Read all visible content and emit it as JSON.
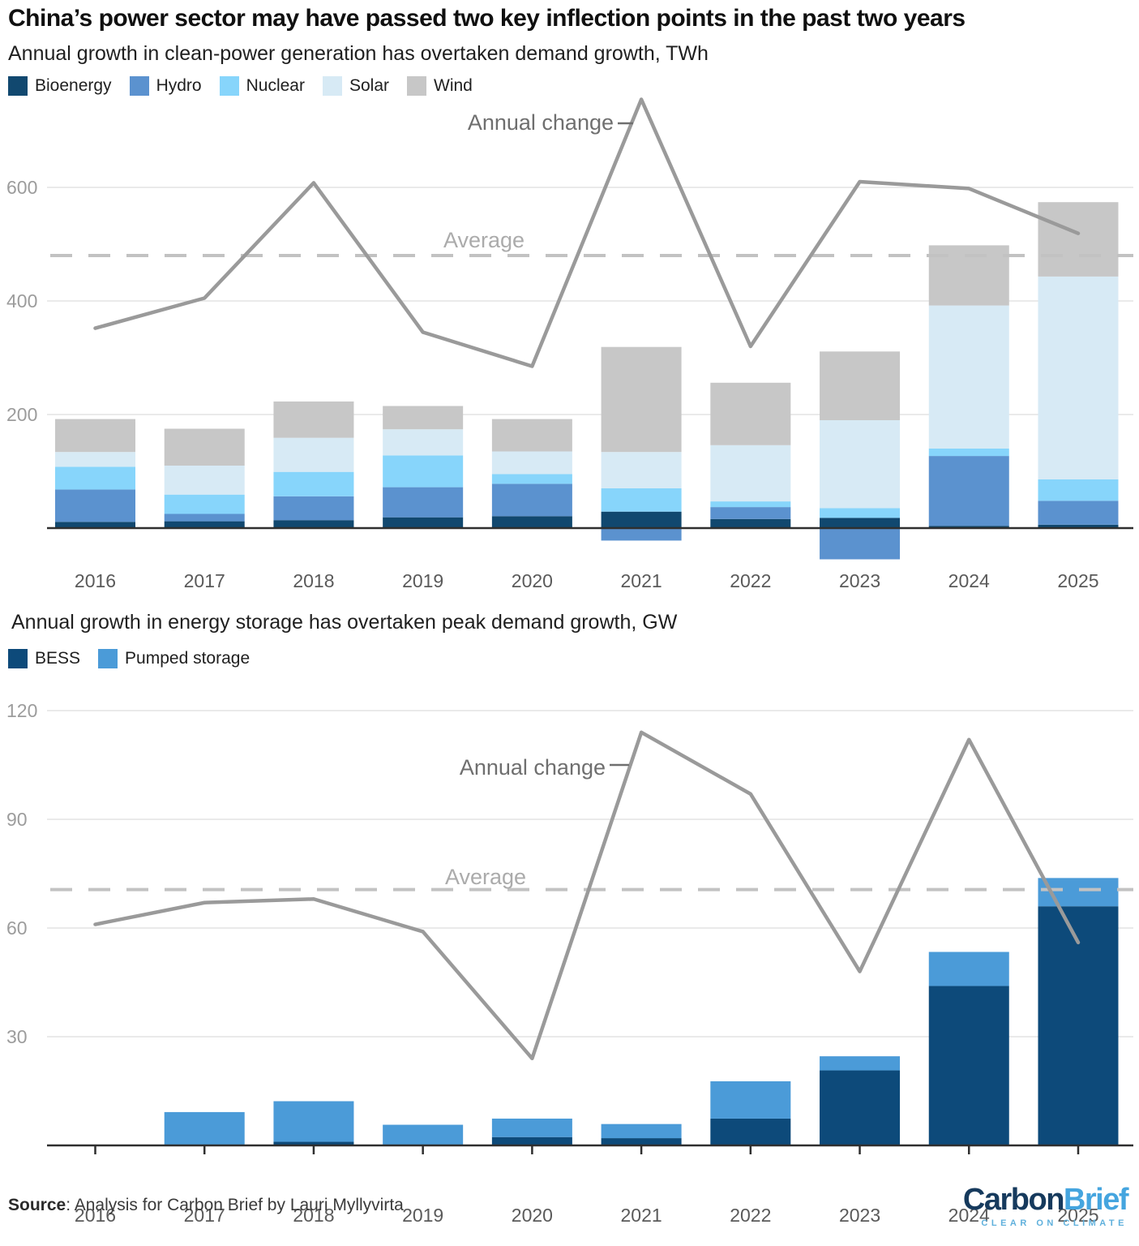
{
  "page": {
    "title": "China’s power sector may have passed two key inflection points in the past two years",
    "subtitle1": "Annual growth in clean-power generation has overtaken demand growth, TWh",
    "chart2_title": "Annual growth in energy storage has overtaken peak demand growth, GW",
    "source_label": "Source",
    "source_text": ": Analysis for Carbon Brief by Lauri Myllyvirta",
    "logo": {
      "part1": "Carbon",
      "part2": "Brief",
      "tagline": "CLEAR ON CLIMATE"
    }
  },
  "colors": {
    "line": "#9a9a9a",
    "dashed_average": "#c2c2c2",
    "grid": "#e4e4e4",
    "axis": "#2f2f2f",
    "tick_label": "#9c9c9c",
    "year_label": "#5a5a5a",
    "annotation_label": "#6f6f6f",
    "average_label": "#ababab",
    "logo_dark": "#163a5d",
    "logo_light": "#45a5df",
    "logo_tagline": "#5fb0dc"
  },
  "chart_data": [
    {
      "type": "bar+line",
      "title": "Annual growth in clean-power generation has overtaken demand growth, TWh",
      "unit": "TWh",
      "categories": [
        "2016",
        "2017",
        "2018",
        "2019",
        "2020",
        "2021",
        "2022",
        "2023",
        "2024",
        "2025"
      ],
      "series": [
        {
          "name": "Bioenergy",
          "color": "#11486f",
          "values": [
            11,
            12,
            14,
            19,
            21,
            29,
            16,
            18,
            4,
            6
          ]
        },
        {
          "name": "Hydro",
          "color": "#5b92cf",
          "values": [
            57,
            13,
            42,
            53,
            57,
            -22,
            21,
            -55,
            123,
            42
          ]
        },
        {
          "name": "Nuclear",
          "color": "#87d5fb",
          "values": [
            40,
            34,
            43,
            56,
            17,
            41,
            10,
            17,
            13,
            38
          ]
        },
        {
          "name": "Solar",
          "color": "#d7eaf5",
          "values": [
            26,
            51,
            60,
            46,
            40,
            64,
            99,
            155,
            252,
            357
          ]
        },
        {
          "name": "Wind",
          "color": "#c7c7c7",
          "values": [
            58,
            65,
            64,
            41,
            57,
            185,
            110,
            121,
            106,
            131
          ]
        }
      ],
      "line": {
        "name": "Annual change",
        "color": "#9a9a9a",
        "values": [
          352,
          405,
          608,
          345,
          285,
          755,
          320,
          610,
          598,
          519
        ]
      },
      "average": {
        "label": "Average",
        "value": 480
      },
      "annotation_label": "Annual change",
      "yticks": [
        200,
        400,
        600
      ],
      "ylim": [
        -60,
        760
      ],
      "grid": true,
      "legend_position": "top"
    },
    {
      "type": "bar+line",
      "title": "Annual growth in energy storage has overtaken peak demand growth, GW",
      "unit": "GW",
      "categories": [
        "2016",
        "2017",
        "2018",
        "2019",
        "2020",
        "2021",
        "2022",
        "2023",
        "2024",
        "2025"
      ],
      "series": [
        {
          "name": "BESS",
          "color": "#0d4a7a",
          "values": [
            0,
            0,
            1,
            0,
            2.3,
            2,
            7.4,
            20.7,
            44,
            66
          ]
        },
        {
          "name": "Pumped storage",
          "color": "#4b9bd8",
          "values": [
            0,
            9.2,
            11.2,
            5.7,
            5.1,
            3.9,
            10.3,
            3.9,
            9.4,
            7.8
          ]
        }
      ],
      "line": {
        "name": "Annual change",
        "color": "#9a9a9a",
        "values": [
          61,
          67,
          68,
          59,
          24,
          114,
          97,
          48,
          112,
          56
        ]
      },
      "average": {
        "label": "Average",
        "value": 70.6
      },
      "annotation_label": "Annual change",
      "yticks": [
        30,
        60,
        90,
        120
      ],
      "ylim": [
        0,
        120
      ],
      "grid": true,
      "legend_position": "top"
    }
  ]
}
